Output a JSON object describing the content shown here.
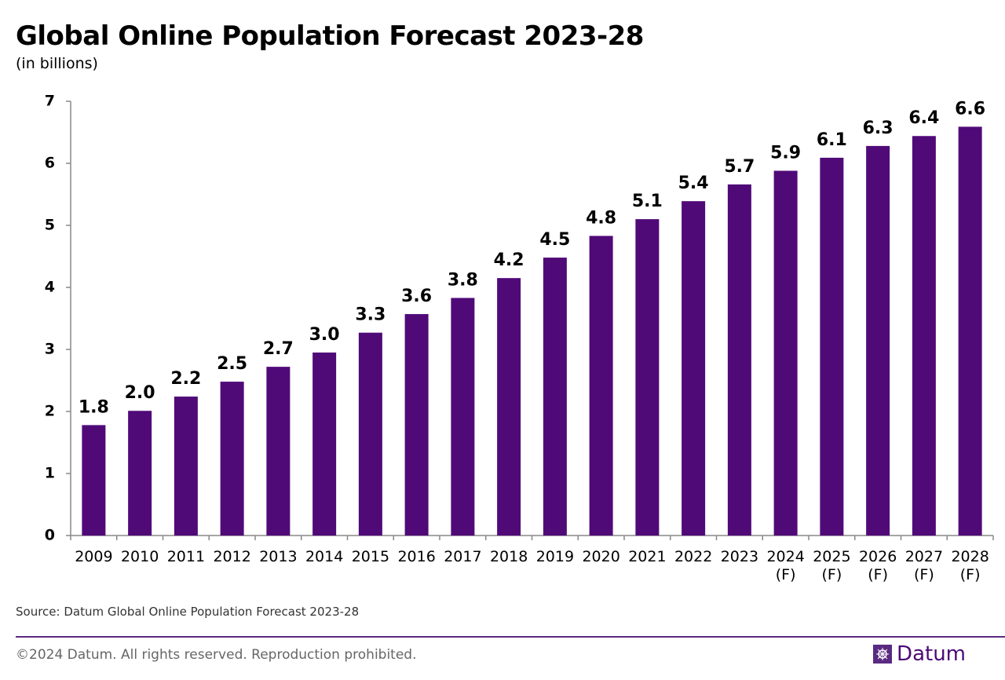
{
  "chart_data": {
    "type": "bar",
    "title": "Global Online Population Forecast 2023-28",
    "subtitle": "(in billions)",
    "categories": [
      "2009",
      "2010",
      "2011",
      "2012",
      "2013",
      "2014",
      "2015",
      "2016",
      "2017",
      "2018",
      "2019",
      "2020",
      "2021",
      "2022",
      "2023",
      "2024 (F)",
      "2025 (F)",
      "2026 (F)",
      "2027 (F)",
      "2028 (F)"
    ],
    "values": [
      1.78,
      2.01,
      2.24,
      2.48,
      2.72,
      2.95,
      3.27,
      3.57,
      3.83,
      4.15,
      4.48,
      4.83,
      5.1,
      5.39,
      5.66,
      5.88,
      6.09,
      6.28,
      6.44,
      6.59
    ],
    "value_labels": [
      "1.8",
      "2.0",
      "2.2",
      "2.5",
      "2.7",
      "3.0",
      "3.3",
      "3.6",
      "3.8",
      "4.2",
      "4.5",
      "4.8",
      "5.1",
      "5.4",
      "5.7",
      "5.9",
      "6.1",
      "6.3",
      "6.4",
      "6.6"
    ],
    "color": "#500a78",
    "ylim": [
      0,
      7
    ],
    "yticks": [
      0,
      1,
      2,
      3,
      4,
      5,
      6,
      7
    ],
    "source": "Source: Datum Global Online Population Forecast 2023-28"
  },
  "footer": {
    "copyright": "©2024 Datum. All rights reserved. Reproduction prohibited.",
    "brand": "Datum"
  }
}
